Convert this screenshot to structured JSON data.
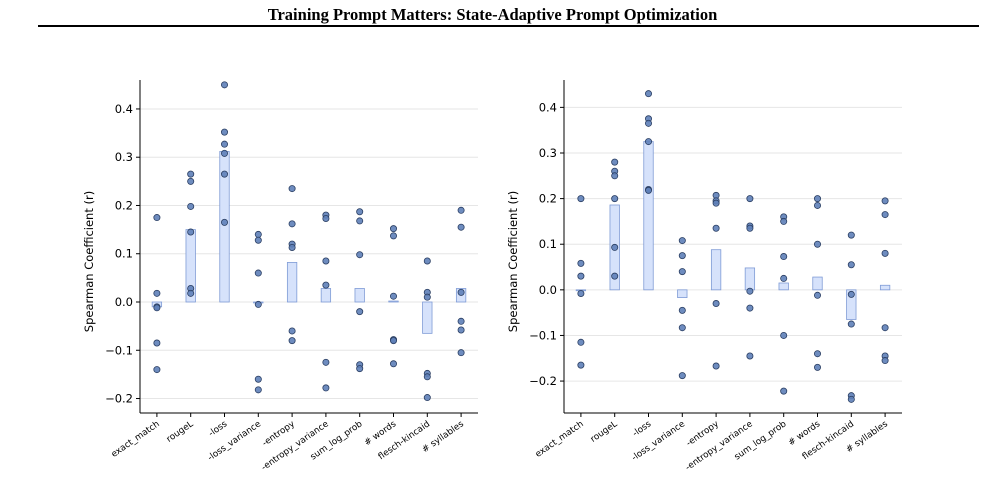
{
  "page": {
    "header_title": "Training Prompt Matters: State-Adaptive Prompt Optimization"
  },
  "colors": {
    "bar_fill": "#d6e2fb",
    "bar_edge": "#7f9bd6",
    "point_fill": "#5e80b8",
    "point_edge": "#2b3f63",
    "grid": "#e6e6e6",
    "axis": "#000000"
  },
  "chart_data": [
    {
      "type": "bar",
      "overlay": "scatter",
      "ylabel": "Spearman Coefficient (r)",
      "xlabel": "",
      "ylim": [
        -0.23,
        0.46
      ],
      "yticks": [
        -0.2,
        -0.1,
        0.0,
        0.1,
        0.2,
        0.3,
        0.4
      ],
      "ytick_labels": [
        "−0.2",
        "−0.1",
        "0.0",
        "0.1",
        "0.2",
        "0.3",
        "0.4"
      ],
      "grid": "horizontal",
      "categories": [
        "exact_match",
        "rougeL",
        "-loss",
        "-loss_variance",
        "-entropy",
        "-entropy_variance",
        "sum_log_prob",
        "# words",
        "flesch-kincaid",
        "# syllables"
      ],
      "values": [
        -0.01,
        0.15,
        0.312,
        -0.002,
        0.082,
        0.028,
        0.028,
        0.002,
        -0.065,
        0.028
      ],
      "points": [
        [
          0.175,
          0.018,
          -0.01,
          -0.012,
          -0.085,
          -0.14
        ],
        [
          0.265,
          0.25,
          0.198,
          0.145,
          0.028,
          0.018
        ],
        [
          0.45,
          0.352,
          0.327,
          0.308,
          0.265,
          0.165
        ],
        [
          0.14,
          0.128,
          0.06,
          -0.005,
          -0.16,
          -0.182
        ],
        [
          0.235,
          0.162,
          0.12,
          0.113,
          -0.06,
          -0.08
        ],
        [
          0.18,
          0.173,
          0.085,
          0.035,
          -0.125,
          -0.178
        ],
        [
          0.187,
          0.168,
          0.098,
          -0.02,
          -0.13,
          -0.138
        ],
        [
          0.152,
          0.137,
          0.012,
          -0.078,
          -0.08,
          -0.128
        ],
        [
          0.085,
          0.02,
          0.01,
          -0.148,
          -0.155,
          -0.198
        ],
        [
          0.19,
          0.155,
          0.02,
          -0.04,
          -0.058,
          -0.105
        ]
      ]
    },
    {
      "type": "bar",
      "overlay": "scatter",
      "ylabel": "Spearman Coefficient (r)",
      "xlabel": "",
      "ylim": [
        -0.27,
        0.46
      ],
      "yticks": [
        -0.2,
        -0.1,
        0.0,
        0.1,
        0.2,
        0.3,
        0.4
      ],
      "ytick_labels": [
        "−0.2",
        "−0.1",
        "0.0",
        "0.1",
        "0.2",
        "0.3",
        "0.4"
      ],
      "grid": "horizontal",
      "categories": [
        "exact_match",
        "rougeL",
        "-loss",
        "-loss_variance",
        "-entropy",
        "-entropy_variance",
        "sum_log_prob",
        "# words",
        "flesch-kincaid",
        "# syllables"
      ],
      "values": [
        -0.002,
        0.186,
        0.325,
        -0.017,
        0.088,
        0.048,
        0.015,
        0.028,
        -0.065,
        0.01
      ],
      "points": [
        [
          0.2,
          0.058,
          0.03,
          -0.008,
          -0.115,
          -0.165
        ],
        [
          0.28,
          0.26,
          0.25,
          0.2,
          0.093,
          0.03
        ],
        [
          0.43,
          0.375,
          0.365,
          0.325,
          0.22,
          0.218
        ],
        [
          0.108,
          0.075,
          0.04,
          -0.045,
          -0.083,
          -0.188
        ],
        [
          0.207,
          0.195,
          0.19,
          0.135,
          -0.03,
          -0.167
        ],
        [
          0.2,
          0.14,
          0.135,
          -0.003,
          -0.04,
          -0.145
        ],
        [
          0.16,
          0.15,
          0.073,
          0.025,
          -0.1,
          -0.222
        ],
        [
          0.2,
          0.185,
          0.1,
          -0.012,
          -0.14,
          -0.17
        ],
        [
          0.12,
          0.055,
          -0.01,
          -0.075,
          -0.232,
          -0.24
        ],
        [
          0.195,
          0.165,
          0.08,
          -0.083,
          -0.145,
          -0.155
        ]
      ]
    }
  ]
}
